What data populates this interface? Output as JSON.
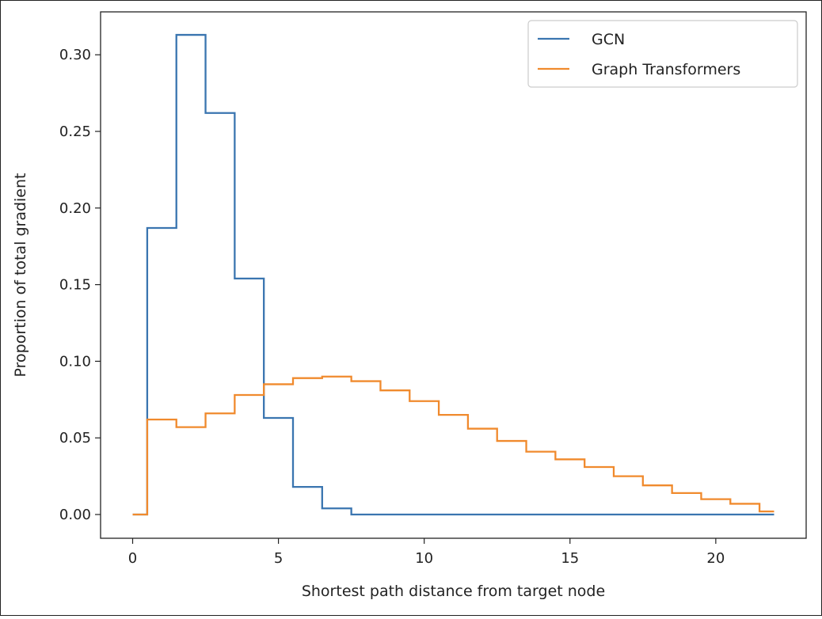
{
  "chart_data": {
    "type": "line",
    "step": "mid",
    "xlabel": "Shortest path distance from target node",
    "ylabel": "Proportion of total gradient",
    "xlim": [
      -1.1,
      23.1
    ],
    "ylim": [
      -0.0155,
      0.328
    ],
    "xticks": [
      0,
      5,
      10,
      15,
      20
    ],
    "yticks": [
      0.0,
      0.05,
      0.1,
      0.15,
      0.2,
      0.25,
      0.3
    ],
    "ytick_labels": [
      "0.00",
      "0.05",
      "0.10",
      "0.15",
      "0.20",
      "0.25",
      "0.30"
    ],
    "grid": false,
    "legend_position": "top-right",
    "x": [
      0,
      1,
      2,
      3,
      4,
      5,
      6,
      7,
      8,
      9,
      10,
      11,
      12,
      13,
      14,
      15,
      16,
      17,
      18,
      19,
      20,
      21,
      22
    ],
    "series": [
      {
        "name": "GCN",
        "color": "#3a75b0",
        "values": [
          0,
          0.187,
          0.313,
          0.262,
          0.154,
          0.063,
          0.018,
          0.004,
          0,
          0,
          0,
          0,
          0,
          0,
          0,
          0,
          0,
          0,
          0,
          0,
          0,
          0,
          0
        ]
      },
      {
        "name": "Graph Transformers",
        "color": "#f08a2d",
        "values": [
          0,
          0.062,
          0.057,
          0.066,
          0.078,
          0.085,
          0.089,
          0.09,
          0.087,
          0.081,
          0.074,
          0.065,
          0.056,
          0.048,
          0.041,
          0.036,
          0.031,
          0.025,
          0.019,
          0.014,
          0.01,
          0.007,
          0.002
        ]
      }
    ]
  }
}
